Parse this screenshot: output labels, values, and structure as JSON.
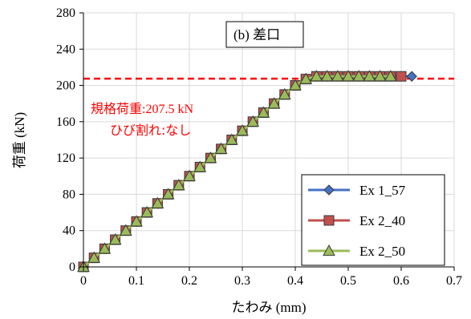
{
  "chart_data": {
    "type": "scatter",
    "title": "(b) 差口",
    "xlabel_jp": "たわみ",
    "xlabel_unit": " (mm)",
    "ylabel_jp": "荷重",
    "ylabel_unit": " (kN)",
    "xlim": [
      0,
      0.7
    ],
    "ylim": [
      0,
      280
    ],
    "x_ticks": [
      "0",
      "0.1",
      "0.2",
      "0.3",
      "0.4",
      "0.5",
      "0.6",
      "0.7"
    ],
    "y_ticks": [
      "0",
      "40",
      "80",
      "120",
      "160",
      "200",
      "240",
      "280"
    ],
    "grid": true,
    "legend_position": "bottom-right",
    "reference_line": {
      "y": 207.5,
      "color": "#ff0000",
      "style": "dashed"
    },
    "annotation": {
      "line1_jp": "規格荷重",
      "line1_value": ":207.5 kN",
      "line2_jp": "ひび割れ",
      "line2_value": ":なし",
      "color": "#ff0000"
    },
    "series": [
      {
        "name": "Ex 1_57",
        "marker": "diamond",
        "line_color": "#4472c4",
        "marker_fill": "#4472c4",
        "points": [
          [
            0,
            0
          ],
          [
            0.02,
            10
          ],
          [
            0.04,
            20
          ],
          [
            0.06,
            30
          ],
          [
            0.08,
            40
          ],
          [
            0.1,
            50
          ],
          [
            0.12,
            60
          ],
          [
            0.14,
            70
          ],
          [
            0.16,
            80
          ],
          [
            0.18,
            90
          ],
          [
            0.2,
            100
          ],
          [
            0.22,
            110
          ],
          [
            0.24,
            120
          ],
          [
            0.26,
            130
          ],
          [
            0.28,
            140
          ],
          [
            0.3,
            150
          ],
          [
            0.32,
            160
          ],
          [
            0.34,
            170
          ],
          [
            0.36,
            180
          ],
          [
            0.38,
            190
          ],
          [
            0.4,
            200
          ],
          [
            0.42,
            207
          ],
          [
            0.44,
            210
          ],
          [
            0.46,
            210
          ],
          [
            0.48,
            210
          ],
          [
            0.5,
            210
          ],
          [
            0.52,
            210
          ],
          [
            0.54,
            210
          ],
          [
            0.56,
            210
          ],
          [
            0.58,
            210
          ],
          [
            0.6,
            210
          ],
          [
            0.62,
            210
          ]
        ]
      },
      {
        "name": "Ex 2_40",
        "marker": "square",
        "line_color": "#c0504d",
        "marker_fill": "#c0504d",
        "points": [
          [
            0,
            0
          ],
          [
            0.02,
            10
          ],
          [
            0.04,
            20
          ],
          [
            0.06,
            30
          ],
          [
            0.08,
            40
          ],
          [
            0.1,
            50
          ],
          [
            0.12,
            60
          ],
          [
            0.14,
            70
          ],
          [
            0.16,
            80
          ],
          [
            0.18,
            90
          ],
          [
            0.2,
            100
          ],
          [
            0.22,
            110
          ],
          [
            0.24,
            120
          ],
          [
            0.26,
            130
          ],
          [
            0.28,
            140
          ],
          [
            0.3,
            150
          ],
          [
            0.32,
            160
          ],
          [
            0.34,
            170
          ],
          [
            0.36,
            180
          ],
          [
            0.38,
            190
          ],
          [
            0.4,
            200
          ],
          [
            0.42,
            207
          ],
          [
            0.44,
            210
          ],
          [
            0.46,
            210
          ],
          [
            0.48,
            210
          ],
          [
            0.5,
            210
          ],
          [
            0.52,
            210
          ],
          [
            0.54,
            210
          ],
          [
            0.56,
            210
          ],
          [
            0.58,
            210
          ],
          [
            0.6,
            210
          ]
        ]
      },
      {
        "name": "Ex 2_50",
        "marker": "triangle",
        "line_color": "#9bbb59",
        "marker_fill": "#9bbb59",
        "points": [
          [
            0,
            0
          ],
          [
            0.02,
            10
          ],
          [
            0.04,
            20
          ],
          [
            0.06,
            30
          ],
          [
            0.08,
            40
          ],
          [
            0.1,
            50
          ],
          [
            0.12,
            60
          ],
          [
            0.14,
            70
          ],
          [
            0.16,
            80
          ],
          [
            0.18,
            90
          ],
          [
            0.2,
            100
          ],
          [
            0.22,
            110
          ],
          [
            0.24,
            120
          ],
          [
            0.26,
            130
          ],
          [
            0.28,
            140
          ],
          [
            0.3,
            150
          ],
          [
            0.32,
            160
          ],
          [
            0.34,
            170
          ],
          [
            0.36,
            180
          ],
          [
            0.38,
            190
          ],
          [
            0.4,
            200
          ],
          [
            0.42,
            207
          ],
          [
            0.44,
            210
          ],
          [
            0.46,
            210
          ],
          [
            0.48,
            210
          ],
          [
            0.5,
            210
          ],
          [
            0.52,
            210
          ],
          [
            0.54,
            210
          ],
          [
            0.56,
            210
          ],
          [
            0.58,
            210
          ]
        ]
      }
    ]
  }
}
